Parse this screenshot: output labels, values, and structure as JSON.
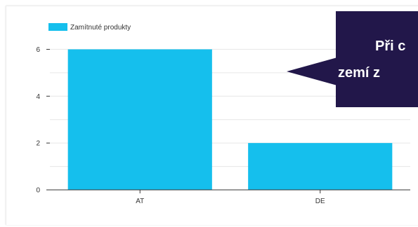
{
  "chart_data": {
    "type": "bar",
    "categories": [
      "AT",
      "DE"
    ],
    "series": [
      {
        "name": "Zamítnuté produkty",
        "values": [
          6,
          2
        ]
      }
    ],
    "ylim": [
      0,
      7
    ],
    "yticks": [
      0,
      2,
      4,
      6
    ],
    "grid": true,
    "legend": "top-left",
    "bar_color": "#15bfed",
    "grid_color": "#e6e6e6",
    "axis_color": "#333333"
  },
  "callout": {
    "line1": "Při c",
    "line2": "zemí z",
    "background": "#22174a",
    "text_color": "#ffffff"
  }
}
